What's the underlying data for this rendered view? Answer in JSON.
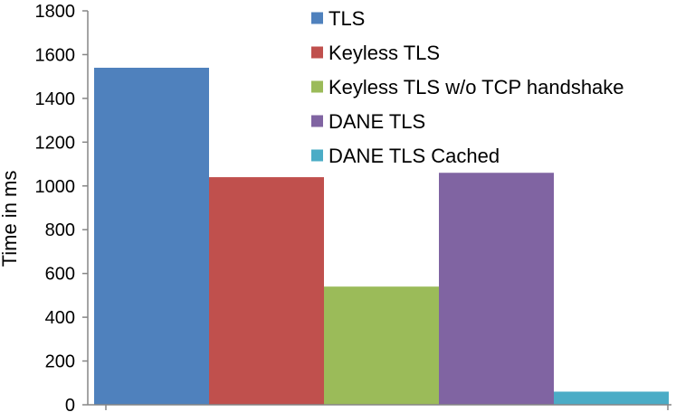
{
  "chart_data": {
    "type": "bar",
    "title": "",
    "xlabel": "",
    "ylabel": "Time in ms",
    "ylim": [
      0,
      1800
    ],
    "yticks": [
      0,
      200,
      400,
      600,
      800,
      1000,
      1200,
      1400,
      1600,
      1800
    ],
    "grid": false,
    "legend_position": "top-right",
    "series": [
      {
        "name": "TLS",
        "value": 1540,
        "color": "#4f81bd"
      },
      {
        "name": "Keyless TLS",
        "value": 1040,
        "color": "#c0504d"
      },
      {
        "name": "Keyless TLS w/o TCP handshake",
        "value": 540,
        "color": "#9bbb59"
      },
      {
        "name": "DANE TLS",
        "value": 1060,
        "color": "#8064a2"
      },
      {
        "name": "DANE TLS Cached",
        "value": 60,
        "color": "#4bacc6"
      }
    ]
  }
}
